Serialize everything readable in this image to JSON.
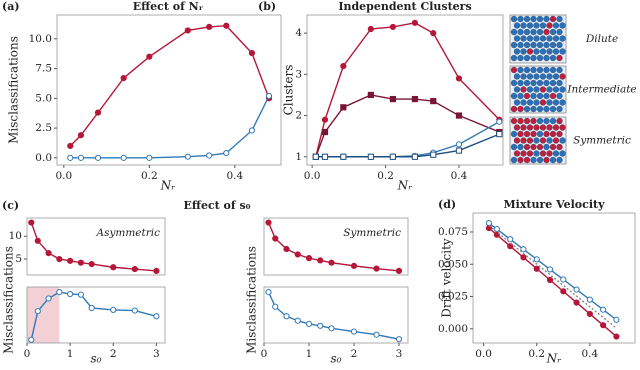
{
  "chart_data": [
    {
      "type": "line",
      "panel": "(a)",
      "title": "Effect of Nᵣ",
      "xlabel": "Nᵣ",
      "ylabel": "Misclassifications",
      "x": [
        0.015,
        0.04,
        0.08,
        0.14,
        0.2,
        0.29,
        0.34,
        0.38,
        0.44,
        0.48
      ],
      "series": [
        {
          "color": "#b5173a",
          "marker": "circle",
          "filled": true,
          "values": [
            1.0,
            1.9,
            3.8,
            6.7,
            8.5,
            10.7,
            11.0,
            11.1,
            8.8,
            5.0
          ]
        },
        {
          "color": "#3179b8",
          "marker": "circle",
          "filled": false,
          "values": [
            0.0,
            0.0,
            0.0,
            0.0,
            0.0,
            0.1,
            0.2,
            0.4,
            2.3,
            5.2
          ]
        }
      ],
      "xlim": [
        -0.016,
        0.508
      ],
      "ylim": [
        -0.6,
        12
      ],
      "xticks": [
        {
          "value": 0,
          "label": "0.0"
        },
        {
          "value": 0.2,
          "label": "0.2"
        },
        {
          "value": 0.4,
          "label": "0.4"
        }
      ],
      "yticks": [
        {
          "value": 0,
          "label": "0.0"
        },
        2.5,
        {
          "value": 5,
          "label": "5.0"
        },
        7.5,
        {
          "value": 10,
          "label": "10.0"
        }
      ]
    },
    {
      "type": "line",
      "panel": "(b)",
      "title": "Independent Clusters",
      "xlabel": "Nᵣ",
      "ylabel": "Clusters",
      "x": [
        0.01,
        0.035,
        0.085,
        0.16,
        0.22,
        0.28,
        0.33,
        0.4,
        0.51
      ],
      "series": [
        {
          "color": "#b5173a",
          "marker": "circle",
          "filled": true,
          "values": [
            1.0,
            1.9,
            3.2,
            4.1,
            4.15,
            4.25,
            4.0,
            2.9,
            1.9
          ]
        },
        {
          "color": "#7a1535",
          "marker": "square",
          "filled": true,
          "values": [
            1.0,
            1.6,
            2.2,
            2.5,
            2.4,
            2.4,
            2.35,
            2.0,
            1.6
          ]
        },
        {
          "color": "#3179b8",
          "marker": "circle",
          "filled": false,
          "values": [
            1.0,
            1.0,
            1.0,
            1.0,
            1.0,
            1.02,
            1.1,
            1.3,
            1.85
          ]
        },
        {
          "color": "#1d4f80",
          "marker": "square",
          "filled": false,
          "values": [
            1.0,
            1.0,
            1.0,
            1.0,
            1.0,
            1.0,
            1.05,
            1.15,
            1.55
          ]
        }
      ],
      "xlim": [
        -0.014,
        0.52
      ],
      "ylim": [
        0.8,
        4.44
      ],
      "xticks": [
        {
          "value": 0,
          "label": "0.0"
        },
        {
          "value": 0.2,
          "label": "0.2"
        },
        {
          "value": 0.4,
          "label": "0.4"
        }
      ],
      "yticks": [
        1,
        2,
        3,
        4
      ],
      "inset_labels": [
        "Dilute",
        "Intermediate",
        "Symmetric"
      ]
    },
    {
      "type": "line",
      "panel": "(c)",
      "title": "Effect of s₀",
      "annotation": "Asymmetric",
      "x": [
        0.1,
        0.25,
        0.5,
        0.75,
        1,
        1.25,
        1.5,
        2,
        2.5,
        3
      ],
      "series": [
        {
          "color": "#b5173a",
          "marker": "circle",
          "filled": true,
          "values": [
            13,
            9,
            6.3,
            5,
            4.6,
            4.2,
            3.9,
            3.2,
            2.8,
            2.4
          ]
        }
      ],
      "xlim": [
        0,
        3.2
      ],
      "ylim": [
        1.5,
        14
      ],
      "xticks": [],
      "yticks": [
        5,
        10
      ]
    },
    {
      "type": "line",
      "xlabel": "s₀",
      "ylabel": "Misclassifications",
      "highlight": [
        0,
        0.75
      ],
      "x": [
        0.1,
        0.25,
        0.5,
        0.75,
        1,
        1.25,
        1.5,
        2,
        2.5,
        3
      ],
      "series": [
        {
          "color": "#3179b8",
          "marker": "circle",
          "filled": false,
          "values": [
            0.05,
            0.5,
            0.7,
            0.8,
            0.77,
            0.76,
            0.55,
            0.52,
            0.51,
            0.42
          ]
        }
      ],
      "xlim": [
        0,
        3.2
      ],
      "ylim": [
        0,
        0.88
      ],
      "xticks": [
        0,
        1,
        2,
        3
      ],
      "yticks": []
    },
    {
      "type": "line",
      "annotation": "Symmetric",
      "x": [
        0.1,
        0.25,
        0.5,
        0.75,
        1,
        1.25,
        1.5,
        2,
        2.5,
        3
      ],
      "series": [
        {
          "color": "#b5173a",
          "marker": "circle",
          "filled": true,
          "values": [
            13,
            9.5,
            7.2,
            6,
            5.2,
            4.7,
            4.2,
            3.5,
            2.9,
            2.4
          ]
        }
      ],
      "xlim": [
        0,
        3.2
      ],
      "ylim": [
        1.5,
        14
      ],
      "xticks": [],
      "yticks": []
    },
    {
      "type": "line",
      "xlabel": "s₀",
      "ylabel": "Misclassifications",
      "x": [
        0.1,
        0.25,
        0.5,
        0.75,
        1,
        1.25,
        1.5,
        2,
        2.5,
        3
      ],
      "series": [
        {
          "color": "#3179b8",
          "marker": "circle",
          "filled": false,
          "values": [
            0.8,
            0.57,
            0.42,
            0.35,
            0.3,
            0.27,
            0.23,
            0.18,
            0.13,
            0.06
          ]
        }
      ],
      "xlim": [
        0,
        3.2
      ],
      "ylim": [
        0,
        0.88
      ],
      "xticks": [
        0,
        1,
        2,
        3
      ],
      "yticks": []
    },
    {
      "type": "line",
      "panel": "(d)",
      "title": "Mixture Velocity",
      "xlabel": "Nᵣ",
      "ylabel": "Drift velocity",
      "x": [
        0.02,
        0.05,
        0.1,
        0.15,
        0.2,
        0.25,
        0.3,
        0.35,
        0.4,
        0.45,
        0.5
      ],
      "series": [
        {
          "color": "#3179b8",
          "marker": "circle",
          "filled": false,
          "values": [
            0.0819,
            0.0772,
            0.0694,
            0.0616,
            0.0538,
            0.046,
            0.0382,
            0.0304,
            0.0226,
            0.0148,
            0.007
          ]
        },
        {
          "color": "#b5173a",
          "marker": "circle",
          "filled": true,
          "values": [
            0.078,
            0.0728,
            0.064,
            0.0553,
            0.0465,
            0.0378,
            0.029,
            0.0203,
            0.0115,
            0.0028,
            -0.006
          ]
        },
        {
          "color": "#888888",
          "marker": "none",
          "dash": true,
          "values": [
            0.08,
            null,
            null,
            null,
            null,
            null,
            null,
            null,
            null,
            null,
            0.0005
          ]
        }
      ],
      "xlim": [
        -0.04,
        0.57
      ],
      "ylim": [
        -0.011,
        0.0897
      ],
      "xticks": [
        {
          "value": 0,
          "label": "0.0"
        },
        {
          "value": 0.2,
          "label": "0.2"
        },
        {
          "value": 0.4,
          "label": "0.4"
        }
      ],
      "yticks": [
        {
          "value": 0,
          "label": "0.000"
        },
        {
          "value": 0.025,
          "label": "0.025"
        },
        {
          "value": 0.05,
          "label": "0.050"
        },
        {
          "value": 0.075,
          "label": "0.075"
        }
      ]
    }
  ]
}
